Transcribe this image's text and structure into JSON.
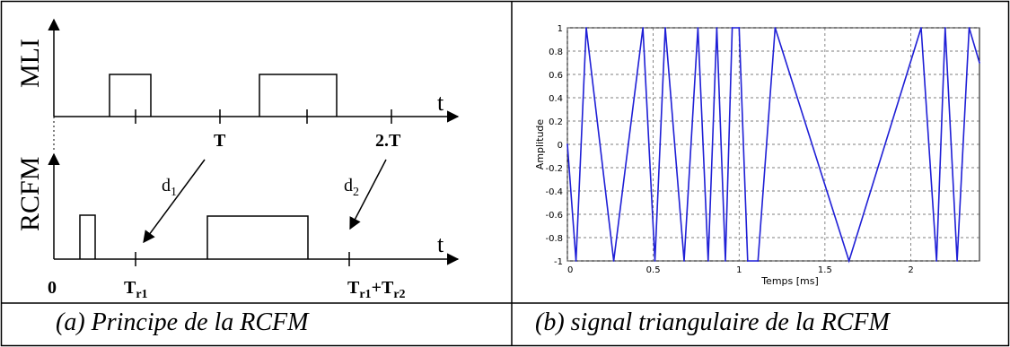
{
  "panel_a": {
    "caption": "(a) Principe de la RCFM",
    "mli_label": "MLI",
    "rcfm_label": "RCFM",
    "t_label_top": "t",
    "t_label_bottom": "t",
    "tick_T": "T",
    "tick_2T": "2.T",
    "origin": "0",
    "d1": "d",
    "d1_sub": "1",
    "d2": "d",
    "d2_sub": "2",
    "tr1": "T",
    "tr1_sub": "r1",
    "tr1_tr2_a": "T",
    "tr1_tr2_a_sub": "r1",
    "tr1_tr2_plus": "+T",
    "tr1_tr2_b_sub": "r2"
  },
  "panel_b": {
    "caption": "(b) signal triangulaire de la RCFM",
    "chart_data": {
      "type": "line",
      "xlabel": "Temps [ms]",
      "ylabel": "Amplitude",
      "xlim": [
        0,
        2.4
      ],
      "ylim": [
        -1,
        1
      ],
      "grid": true,
      "xticks": [
        "0",
        "0.5",
        "1",
        "1.5",
        "2"
      ],
      "yticks": [
        "1",
        "0.8",
        "0.6",
        "0.4",
        "0.2",
        "0",
        "-0.2",
        "-0.4",
        "-0.6",
        "-0.8",
        "-1"
      ],
      "series": [
        {
          "color": "#1f1fd6",
          "x": [
            0,
            0.05,
            0.11,
            0.27,
            0.44,
            0.51,
            0.57,
            0.68,
            0.76,
            0.82,
            0.87,
            0.92,
            0.96,
            1.0,
            1.05,
            1.11,
            1.21,
            1.64,
            2.06,
            2.15,
            2.2,
            2.27,
            2.34,
            2.4
          ],
          "y": [
            0,
            -1,
            1,
            -1,
            1,
            -1,
            1,
            -1,
            1,
            -1,
            1,
            -1,
            1,
            1,
            -1,
            -1,
            1,
            -1,
            1,
            -1,
            1,
            -1,
            1,
            0.7
          ]
        }
      ]
    }
  }
}
